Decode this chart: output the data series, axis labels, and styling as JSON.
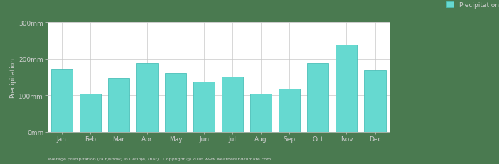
{
  "months": [
    "Jan",
    "Feb",
    "Mar",
    "Apr",
    "May",
    "Jun",
    "Jul",
    "Aug",
    "Sep",
    "Oct",
    "Nov",
    "Dec"
  ],
  "precipitation": [
    172,
    105,
    148,
    188,
    160,
    138,
    152,
    105,
    118,
    188,
    238,
    168
  ],
  "bar_color": "#66D9D0",
  "bar_edge_color": "#4ABFB8",
  "background_color": "#4a7a50",
  "plot_bg_color": "#ffffff",
  "grid_color": "#c8c8c8",
  "ylabel": "Precipitation",
  "yticks": [
    0,
    100,
    200,
    300
  ],
  "ytick_labels": [
    "0mm",
    "100mm",
    "200mm",
    "300mm"
  ],
  "ylim": [
    0,
    300
  ],
  "legend_label": "Precipitation",
  "legend_color": "#66D9D0",
  "text_color": "#d0d0d0",
  "axis_label_color": "#d0d0d0",
  "tick_color": "#d0d0d0",
  "subtitle": "Average precipitation (rain/snow) in Cetinje, (bar)   Copyright @ 2016 www.weatherandclimate.com"
}
